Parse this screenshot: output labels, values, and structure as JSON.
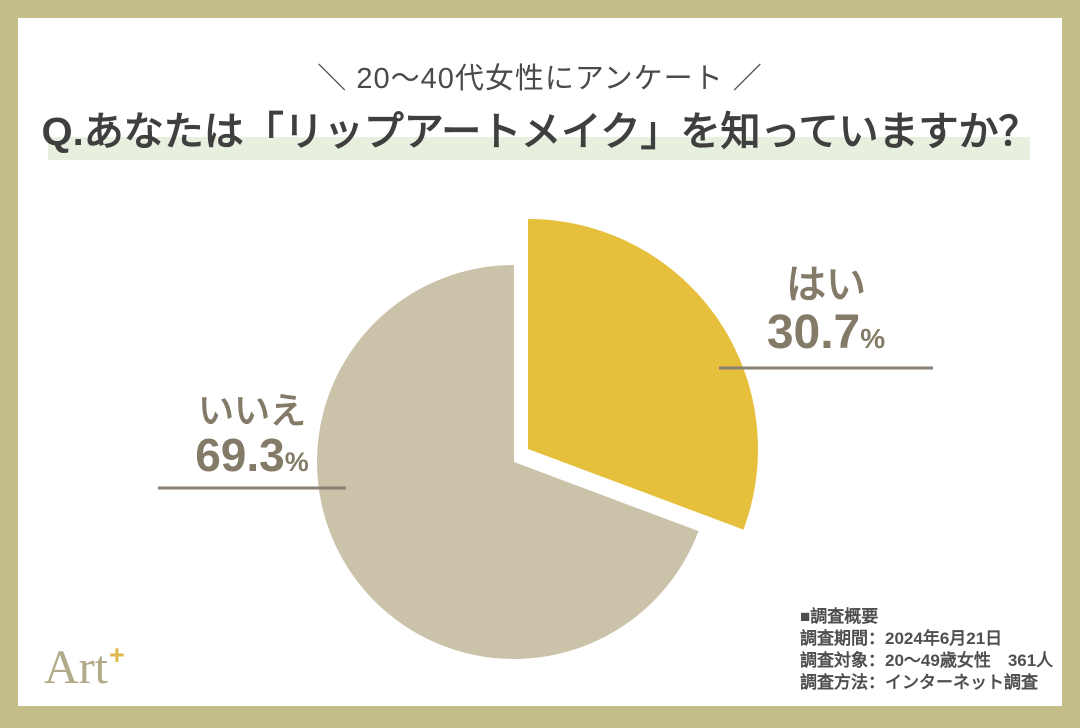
{
  "frame": {
    "border_color": "#c4be88",
    "card_color": "#ffffff"
  },
  "header": {
    "tagline": "＼ 20〜40代女性にアンケート ／",
    "highlight_color": "#e7f0df"
  },
  "chart_data": {
    "type": "pie",
    "title": "Q.あなたは「リップアートメイク」を知っていますか？",
    "unit": "%",
    "direction": "clockwise",
    "start_angle_deg": 0,
    "legend_position": "none",
    "slices": [
      {
        "label": "はい",
        "value": 30.7,
        "value_text": "30.7",
        "color": "#e6bf3c",
        "exploded": true
      },
      {
        "label": "いいえ",
        "value": 69.3,
        "value_text": "69.3",
        "color": "#cbc2aa",
        "exploded": false
      }
    ],
    "label_color": "#847a68",
    "leader_line_color": "#8a8075"
  },
  "survey_info": {
    "heading": "■調査概要",
    "lines": [
      "調査期間：2024年6月21日",
      "調査対象：20〜49歳女性　361人",
      "調査方法：インターネット調査"
    ]
  },
  "logo": {
    "text": "Art",
    "plus": "+",
    "text_color": "#b1aa89",
    "plus_color": "#e0b54b"
  }
}
